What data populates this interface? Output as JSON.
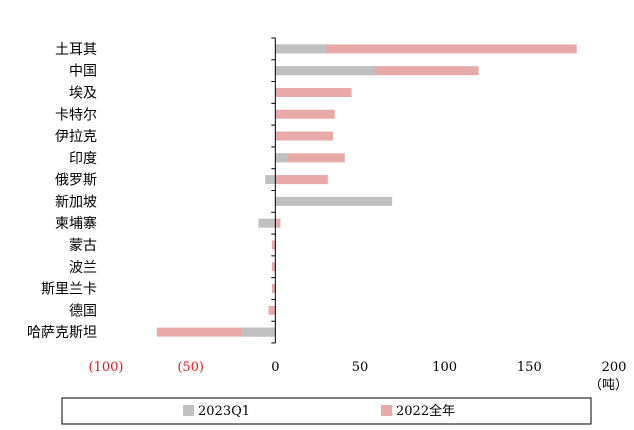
{
  "chart_data": {
    "type": "bar",
    "orientation": "horizontal",
    "stacking": "overlaid",
    "categories": [
      "土耳其",
      "中国",
      "埃及",
      "卡特尔",
      "伊拉克",
      "印度",
      "俄罗斯",
      "新加坡",
      "柬埔寨",
      "蒙古",
      "波兰",
      "斯里兰卡",
      "德国",
      "哈萨克斯坦"
    ],
    "series": [
      {
        "name": "2022全年",
        "color": "#e8a9a9",
        "values": [
          178,
          120,
          45,
          35,
          34,
          41,
          31,
          0,
          3,
          -2,
          -2,
          -2,
          -4,
          -70
        ]
      },
      {
        "name": "2023Q1",
        "color": "#c0c0c0",
        "values": [
          30,
          59,
          0,
          0,
          0,
          7,
          -6,
          69,
          -10,
          0,
          0,
          0,
          0,
          -20
        ]
      }
    ],
    "x_ticks": [
      {
        "value": -100,
        "label": "(100)",
        "color": "#e0201c"
      },
      {
        "value": -50,
        "label": "(50)",
        "color": "#e0201c"
      },
      {
        "value": 0,
        "label": "0",
        "color": "#000000"
      },
      {
        "value": 50,
        "label": "50",
        "color": "#000000"
      },
      {
        "value": 100,
        "label": "100",
        "color": "#000000"
      },
      {
        "value": 150,
        "label": "150",
        "color": "#000000"
      },
      {
        "value": 200,
        "label": "200",
        "color": "#000000"
      }
    ],
    "xlim": [
      -100,
      200
    ],
    "unit": "（吨）",
    "grid": false,
    "legend_position": "bottom"
  }
}
